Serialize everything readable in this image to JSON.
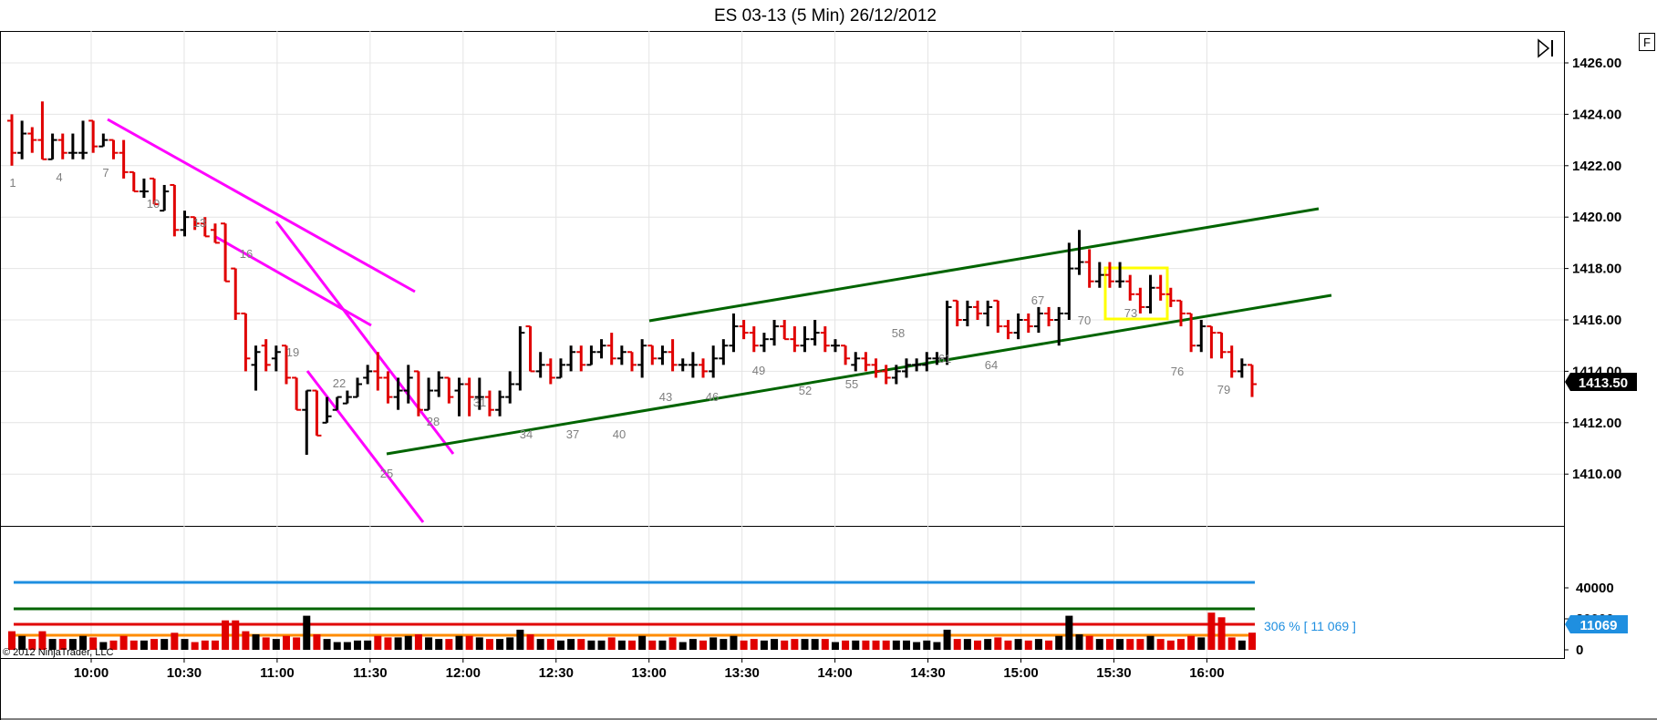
{
  "title": "ES 03-13 (5 Min)  26/12/2012",
  "corner_button": "F",
  "copyright": "© 2012 NinjaTrader, LLC",
  "last_price_tag": "1413.50",
  "volume_tag": "11069",
  "volume_note": "306 % [ 11 069 ]",
  "colors": {
    "up_bar": "#000000",
    "down_bar": "#e00000",
    "trendline_magenta": "#ff00ff",
    "channel_green": "#006400",
    "highlight_box": "#ffff00",
    "volume_avg_line": "#1f8fe0",
    "volume_high_line": "#006400",
    "volume_orange_line": "#ff8c00",
    "volume_red_line": "#e00000",
    "price_tag_bg": "#000000",
    "volume_tag_bg": "#1f8fe0"
  },
  "chart_data": {
    "type": "ohlc",
    "instrument": "ES 03-13",
    "interval": "5 Min",
    "date": "26/12/2012",
    "ylim": [
      1408,
      1427
    ],
    "y_ticks": [
      "1426.00",
      "1424.00",
      "1422.00",
      "1420.00",
      "1418.00",
      "1416.00",
      "1414.00",
      "1412.00",
      "1410.00"
    ],
    "x_ticks": [
      "10:00",
      "10:30",
      "11:00",
      "11:30",
      "12:00",
      "12:30",
      "13:00",
      "13:30",
      "14:00",
      "14:30",
      "15:00",
      "15:30",
      "16:00"
    ],
    "bar_labels": [
      1,
      4,
      7,
      10,
      13,
      16,
      19,
      22,
      25,
      28,
      31,
      34,
      37,
      40,
      43,
      46,
      49,
      52,
      55,
      58,
      61,
      64,
      67,
      70,
      73,
      76,
      79
    ],
    "bars": [
      [
        1423.75,
        1424.0,
        1422.0,
        1422.5
      ],
      [
        1422.5,
        1423.75,
        1422.25,
        1423.25
      ],
      [
        1423.25,
        1423.5,
        1422.5,
        1423.0
      ],
      [
        1423.0,
        1424.5,
        1422.25,
        1422.25
      ],
      [
        1422.25,
        1423.25,
        1422.25,
        1423.0
      ],
      [
        1423.0,
        1423.25,
        1422.25,
        1422.5
      ],
      [
        1422.5,
        1423.25,
        1422.25,
        1422.5
      ],
      [
        1422.5,
        1423.75,
        1422.25,
        1422.5
      ],
      [
        1423.75,
        1423.75,
        1422.5,
        1422.75
      ],
      [
        1422.75,
        1423.25,
        1422.75,
        1423.0
      ],
      [
        1423.0,
        1423.0,
        1422.25,
        1422.5
      ],
      [
        1422.5,
        1423.0,
        1421.5,
        1421.75
      ],
      [
        1421.75,
        1421.75,
        1421.0,
        1421.0
      ],
      [
        1421.0,
        1421.5,
        1420.75,
        1421.0
      ],
      [
        1421.5,
        1421.5,
        1420.5,
        1420.5
      ],
      [
        1420.25,
        1421.25,
        1420.25,
        1421.0
      ],
      [
        1421.25,
        1421.25,
        1419.25,
        1419.5
      ],
      [
        1419.5,
        1420.25,
        1419.25,
        1420.0
      ],
      [
        1420.0,
        1420.0,
        1419.5,
        1419.75
      ],
      [
        1419.75,
        1420.0,
        1419.25,
        1419.25
      ],
      [
        1419.5,
        1419.75,
        1419.0,
        1419.0
      ],
      [
        1419.75,
        1419.75,
        1417.5,
        1417.5
      ],
      [
        1418.0,
        1418.0,
        1416.0,
        1416.25
      ],
      [
        1416.25,
        1416.25,
        1414.0,
        1414.5
      ],
      [
        1414.25,
        1415.0,
        1413.25,
        1414.75
      ],
      [
        1415.0,
        1415.25,
        1414.0,
        1414.25
      ],
      [
        1414.5,
        1415.0,
        1414.0,
        1414.75
      ],
      [
        1415.0,
        1415.0,
        1413.5,
        1413.75
      ],
      [
        1413.75,
        1413.75,
        1412.5,
        1412.5
      ],
      [
        1412.5,
        1413.25,
        1410.75,
        1413.25
      ],
      [
        1413.25,
        1413.25,
        1411.5,
        1411.5
      ],
      [
        1412.0,
        1413.0,
        1412.0,
        1412.25
      ],
      [
        1412.5,
        1413.0,
        1412.5,
        1413.0
      ],
      [
        1412.75,
        1413.25,
        1412.75,
        1413.0
      ],
      [
        1413.0,
        1413.75,
        1413.0,
        1413.5
      ],
      [
        1413.75,
        1414.25,
        1413.5,
        1414.0
      ],
      [
        1414.0,
        1414.75,
        1413.25,
        1413.75
      ],
      [
        1413.75,
        1414.0,
        1412.75,
        1413.0
      ],
      [
        1413.0,
        1413.75,
        1412.5,
        1413.25
      ],
      [
        1413.25,
        1414.25,
        1412.75,
        1413.75
      ],
      [
        1414.0,
        1414.0,
        1412.25,
        1412.5
      ],
      [
        1412.5,
        1413.75,
        1412.5,
        1413.25
      ],
      [
        1413.25,
        1414.0,
        1413.0,
        1413.75
      ],
      [
        1413.75,
        1413.75,
        1412.75,
        1413.0
      ],
      [
        1413.25,
        1413.75,
        1412.25,
        1413.5
      ],
      [
        1413.5,
        1413.75,
        1412.25,
        1413.0
      ],
      [
        1413.0,
        1413.75,
        1412.5,
        1413.0
      ],
      [
        1413.0,
        1413.25,
        1412.25,
        1412.5
      ],
      [
        1412.5,
        1413.25,
        1412.25,
        1413.0
      ],
      [
        1413.0,
        1414.0,
        1412.75,
        1413.5
      ],
      [
        1413.5,
        1415.75,
        1413.25,
        1415.5
      ],
      [
        1415.75,
        1415.75,
        1414.0,
        1414.0
      ],
      [
        1414.0,
        1414.75,
        1413.75,
        1414.25
      ],
      [
        1414.25,
        1414.5,
        1413.5,
        1413.75
      ],
      [
        1413.75,
        1414.5,
        1413.75,
        1414.25
      ],
      [
        1414.25,
        1415.0,
        1414.0,
        1414.75
      ],
      [
        1414.75,
        1415.0,
        1414.0,
        1414.25
      ],
      [
        1414.25,
        1415.0,
        1414.25,
        1414.75
      ],
      [
        1414.75,
        1415.25,
        1414.5,
        1415.0
      ],
      [
        1415.0,
        1415.5,
        1414.25,
        1414.5
      ],
      [
        1414.5,
        1415.0,
        1414.25,
        1414.75
      ],
      [
        1414.75,
        1414.75,
        1414.0,
        1414.25
      ],
      [
        1414.25,
        1415.25,
        1413.75,
        1415.0
      ],
      [
        1415.0,
        1415.0,
        1414.25,
        1414.5
      ],
      [
        1414.5,
        1415.0,
        1414.25,
        1414.75
      ],
      [
        1414.75,
        1415.25,
        1414.0,
        1414.25
      ],
      [
        1414.25,
        1414.5,
        1414.0,
        1414.25
      ],
      [
        1414.25,
        1414.75,
        1413.75,
        1414.25
      ],
      [
        1414.25,
        1414.5,
        1413.75,
        1414.0
      ],
      [
        1414.0,
        1415.0,
        1413.75,
        1414.5
      ],
      [
        1414.5,
        1415.25,
        1414.25,
        1415.0
      ],
      [
        1415.0,
        1416.25,
        1414.75,
        1415.75
      ],
      [
        1415.75,
        1416.0,
        1415.25,
        1415.5
      ],
      [
        1415.5,
        1415.75,
        1414.75,
        1415.0
      ],
      [
        1415.0,
        1415.5,
        1414.75,
        1415.25
      ],
      [
        1415.25,
        1416.0,
        1415.0,
        1415.75
      ],
      [
        1415.75,
        1416.0,
        1415.25,
        1415.25
      ],
      [
        1415.25,
        1415.75,
        1414.75,
        1415.0
      ],
      [
        1415.0,
        1415.75,
        1414.75,
        1415.25
      ],
      [
        1415.25,
        1416.0,
        1415.0,
        1415.5
      ],
      [
        1415.5,
        1415.75,
        1414.75,
        1415.0
      ],
      [
        1415.0,
        1415.25,
        1414.75,
        1415.0
      ],
      [
        1415.0,
        1415.0,
        1414.25,
        1414.5
      ],
      [
        1414.25,
        1414.75,
        1414.0,
        1414.5
      ],
      [
        1414.5,
        1414.75,
        1414.0,
        1414.25
      ],
      [
        1414.25,
        1414.5,
        1413.75,
        1414.0
      ],
      [
        1414.0,
        1414.25,
        1413.5,
        1413.75
      ],
      [
        1413.75,
        1414.25,
        1413.5,
        1414.0
      ],
      [
        1414.0,
        1414.5,
        1413.75,
        1414.25
      ],
      [
        1414.25,
        1414.5,
        1414.0,
        1414.25
      ],
      [
        1414.25,
        1414.75,
        1414.0,
        1414.5
      ],
      [
        1414.5,
        1414.75,
        1414.25,
        1414.5
      ],
      [
        1414.5,
        1416.75,
        1414.25,
        1416.5
      ],
      [
        1416.75,
        1416.75,
        1415.75,
        1416.0
      ],
      [
        1416.0,
        1416.75,
        1415.75,
        1416.5
      ],
      [
        1416.5,
        1416.75,
        1416.0,
        1416.25
      ],
      [
        1416.25,
        1416.75,
        1415.75,
        1416.5
      ],
      [
        1416.75,
        1416.75,
        1415.5,
        1415.75
      ],
      [
        1415.75,
        1416.0,
        1415.25,
        1415.5
      ],
      [
        1415.5,
        1416.25,
        1415.25,
        1416.0
      ],
      [
        1416.0,
        1416.25,
        1415.5,
        1415.75
      ],
      [
        1415.75,
        1416.5,
        1415.5,
        1416.25
      ],
      [
        1416.25,
        1416.5,
        1415.75,
        1416.0
      ],
      [
        1416.0,
        1416.5,
        1415.0,
        1416.25
      ],
      [
        1416.25,
        1419.0,
        1416.0,
        1418.0
      ],
      [
        1418.0,
        1419.5,
        1417.75,
        1418.25
      ],
      [
        1418.25,
        1418.75,
        1417.25,
        1417.5
      ],
      [
        1417.5,
        1418.25,
        1417.25,
        1417.75
      ],
      [
        1417.75,
        1418.25,
        1417.25,
        1417.5
      ],
      [
        1417.5,
        1418.25,
        1417.25,
        1417.5
      ],
      [
        1417.5,
        1417.75,
        1416.75,
        1417.0
      ],
      [
        1417.0,
        1417.25,
        1416.25,
        1416.5
      ],
      [
        1416.5,
        1417.75,
        1416.25,
        1417.25
      ],
      [
        1417.25,
        1417.75,
        1416.75,
        1417.0
      ],
      [
        1417.0,
        1417.25,
        1416.5,
        1416.75
      ],
      [
        1416.75,
        1416.75,
        1415.75,
        1416.25
      ],
      [
        1416.25,
        1416.25,
        1414.75,
        1415.0
      ],
      [
        1415.0,
        1416.0,
        1414.75,
        1415.75
      ],
      [
        1415.75,
        1415.75,
        1414.5,
        1415.5
      ],
      [
        1415.5,
        1415.5,
        1414.5,
        1414.75
      ],
      [
        1414.75,
        1415.0,
        1413.75,
        1414.0
      ],
      [
        1414.0,
        1414.5,
        1413.75,
        1414.25
      ],
      [
        1414.25,
        1414.25,
        1413.0,
        1413.5
      ]
    ],
    "volume": {
      "ylim": [
        0,
        48000
      ],
      "y_ticks": [
        "40000",
        "20000",
        "0"
      ],
      "avg_line": 29000,
      "high_line": 16000,
      "red_line": 10500,
      "orange_line": 8000,
      "last_value": 11069,
      "note": "306 % [ 11 069 ]"
    },
    "drawings": [
      {
        "type": "line",
        "color": "magenta",
        "from": [
          "bar8",
          1423.75
        ],
        "to": [
          "bar93",
          1417.2
        ]
      },
      {
        "type": "line",
        "color": "magenta",
        "from": [
          "bar45",
          1419.2
        ],
        "to": [
          "bar78",
          1416.0
        ]
      },
      {
        "type": "line",
        "color": "magenta",
        "from": [
          "bar60",
          1419.8
        ],
        "to": [
          "bar100",
          1410.8
        ]
      },
      {
        "type": "line",
        "color": "magenta",
        "from": [
          "bar65",
          1414.0
        ],
        "to": [
          "bar95",
          1408.0
        ]
      },
      {
        "type": "line",
        "color": "green",
        "from": [
          "bar88",
          1410.8
        ],
        "to": [
          "bar300",
          1417.0
        ]
      },
      {
        "type": "line",
        "color": "green",
        "from": [
          "bar148",
          1416.0
        ],
        "to": [
          "bar298",
          1420.3
        ]
      },
      {
        "type": "rect",
        "color": "yellow",
        "bars": "73-75"
      }
    ]
  }
}
